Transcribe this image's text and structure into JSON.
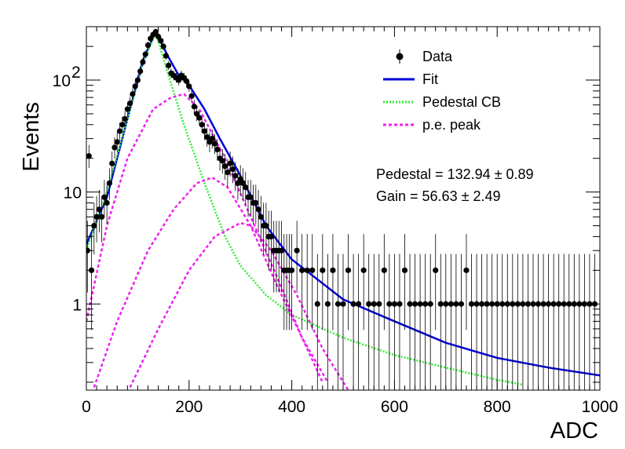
{
  "chart_data": {
    "type": "scatter",
    "title": "",
    "xlabel": "ADC",
    "ylabel": "Events",
    "xlim": [
      0,
      1000
    ],
    "ylim": [
      0.17,
      300
    ],
    "yscale": "log",
    "x_tick_labels": [
      "0",
      "200",
      "400",
      "600",
      "800",
      "1000"
    ],
    "x_ticks": [
      0,
      200,
      400,
      600,
      800,
      1000
    ],
    "y_ticks": [
      1,
      10,
      100
    ],
    "y_tick_labels": [
      {
        "base": "1",
        "exp": ""
      },
      {
        "base": "10",
        "exp": ""
      },
      {
        "base": "10",
        "exp": "2"
      }
    ],
    "grid": false,
    "legend_position": "top-right",
    "legend": [
      {
        "label": "Data",
        "style": "marker",
        "color": "#000000"
      },
      {
        "label": "Fit",
        "style": "solid",
        "color": "#0000dd"
      },
      {
        "label": "Pedestal CB",
        "style": "dotted",
        "color": "#33ee33"
      },
      {
        "label": "p.e. peak",
        "style": "dashed",
        "color": "#ee22ee"
      }
    ],
    "annotations": [
      {
        "label": "Pedestal = 132.94",
        "pm": "±",
        "err": "0.89"
      },
      {
        "label": "Gain = 56.63",
        "pm": "±",
        "err": "2.49"
      }
    ],
    "fit_parameters": {
      "pedestal": 132.94,
      "pedestal_err": 0.89,
      "gain": 56.63,
      "gain_err": 2.49
    },
    "series": [
      {
        "name": "Data",
        "color": "#000000",
        "points": [
          [
            2,
            3
          ],
          [
            5,
            21
          ],
          [
            10,
            2
          ],
          [
            15,
            5
          ],
          [
            20,
            6
          ],
          [
            25,
            7
          ],
          [
            30,
            6
          ],
          [
            35,
            9
          ],
          [
            40,
            8
          ],
          [
            45,
            12
          ],
          [
            50,
            18
          ],
          [
            55,
            25
          ],
          [
            60,
            28
          ],
          [
            65,
            35
          ],
          [
            70,
            40
          ],
          [
            75,
            45
          ],
          [
            80,
            55
          ],
          [
            85,
            62
          ],
          [
            90,
            75
          ],
          [
            95,
            88
          ],
          [
            100,
            100
          ],
          [
            105,
            120
          ],
          [
            110,
            145
          ],
          [
            115,
            170
          ],
          [
            120,
            205
          ],
          [
            125,
            235
          ],
          [
            130,
            255
          ],
          [
            135,
            270
          ],
          [
            140,
            245
          ],
          [
            145,
            225
          ],
          [
            150,
            200
          ],
          [
            155,
            165
          ],
          [
            160,
            135
          ],
          [
            165,
            115
          ],
          [
            170,
            110
          ],
          [
            175,
            105
          ],
          [
            180,
            100
          ],
          [
            185,
            110
          ],
          [
            190,
            105
          ],
          [
            195,
            98
          ],
          [
            200,
            88
          ],
          [
            205,
            72
          ],
          [
            210,
            58
          ],
          [
            215,
            50
          ],
          [
            220,
            46
          ],
          [
            225,
            40
          ],
          [
            230,
            35
          ],
          [
            235,
            31
          ],
          [
            240,
            28
          ],
          [
            245,
            30
          ],
          [
            250,
            27
          ],
          [
            255,
            24
          ],
          [
            260,
            20
          ],
          [
            265,
            19
          ],
          [
            270,
            17
          ],
          [
            275,
            15
          ],
          [
            280,
            18
          ],
          [
            285,
            16
          ],
          [
            290,
            14
          ],
          [
            295,
            12
          ],
          [
            300,
            13
          ],
          [
            305,
            12
          ],
          [
            310,
            11
          ],
          [
            315,
            9
          ],
          [
            320,
            9
          ],
          [
            325,
            8
          ],
          [
            330,
            8
          ],
          [
            335,
            7
          ],
          [
            340,
            6
          ],
          [
            345,
            5
          ],
          [
            350,
            5
          ],
          [
            355,
            4
          ],
          [
            360,
            4
          ],
          [
            365,
            3
          ],
          [
            370,
            3
          ],
          [
            375,
            3
          ],
          [
            380,
            3
          ],
          [
            385,
            2
          ],
          [
            390,
            2
          ],
          [
            395,
            2
          ],
          [
            400,
            2
          ],
          [
            410,
            3
          ],
          [
            420,
            2
          ],
          [
            430,
            2
          ],
          [
            440,
            2
          ],
          [
            450,
            1
          ],
          [
            460,
            2
          ],
          [
            470,
            1
          ],
          [
            480,
            2
          ],
          [
            490,
            1
          ],
          [
            500,
            1
          ],
          [
            510,
            2
          ],
          [
            520,
            1
          ],
          [
            530,
            1
          ],
          [
            540,
            2
          ],
          [
            550,
            1
          ],
          [
            560,
            1
          ],
          [
            570,
            1
          ],
          [
            580,
            2
          ],
          [
            590,
            1
          ],
          [
            600,
            1
          ],
          [
            610,
            1
          ],
          [
            620,
            2
          ],
          [
            630,
            1
          ],
          [
            640,
            1
          ],
          [
            650,
            1
          ],
          [
            660,
            1
          ],
          [
            670,
            1
          ],
          [
            680,
            2
          ],
          [
            690,
            1
          ],
          [
            700,
            1
          ],
          [
            710,
            1
          ],
          [
            720,
            1
          ],
          [
            730,
            1
          ],
          [
            740,
            2
          ],
          [
            750,
            1
          ],
          [
            760,
            1
          ],
          [
            770,
            1
          ],
          [
            780,
            1
          ],
          [
            790,
            1
          ],
          [
            800,
            1
          ],
          [
            810,
            1
          ],
          [
            820,
            1
          ],
          [
            830,
            1
          ],
          [
            840,
            1
          ],
          [
            850,
            1
          ],
          [
            860,
            1
          ],
          [
            870,
            1
          ],
          [
            880,
            1
          ],
          [
            890,
            1
          ],
          [
            900,
            1
          ],
          [
            910,
            1
          ],
          [
            920,
            1
          ],
          [
            930,
            1
          ],
          [
            940,
            1
          ],
          [
            950,
            1
          ],
          [
            960,
            1
          ],
          [
            970,
            1
          ],
          [
            980,
            1
          ],
          [
            990,
            1
          ]
        ]
      },
      {
        "name": "Fit",
        "color": "#0000dd",
        "points": [
          [
            0,
            3.4
          ],
          [
            40,
            9
          ],
          [
            80,
            45
          ],
          [
            110,
            150
          ],
          [
            135,
            270
          ],
          [
            160,
            160
          ],
          [
            180,
            110
          ],
          [
            200,
            90
          ],
          [
            230,
            55
          ],
          [
            260,
            30
          ],
          [
            300,
            14
          ],
          [
            350,
            5
          ],
          [
            400,
            2.5
          ],
          [
            500,
            1.1
          ],
          [
            600,
            0.7
          ],
          [
            700,
            0.45
          ],
          [
            800,
            0.33
          ],
          [
            900,
            0.27
          ],
          [
            1000,
            0.23
          ]
        ]
      },
      {
        "name": "Pedestal CB",
        "color": "#33ee33",
        "points": [
          [
            0,
            3
          ],
          [
            40,
            10
          ],
          [
            80,
            45
          ],
          [
            110,
            140
          ],
          [
            135,
            265
          ],
          [
            160,
            110
          ],
          [
            190,
            40
          ],
          [
            230,
            12
          ],
          [
            270,
            4
          ],
          [
            300,
            2.2
          ],
          [
            350,
            1.2
          ],
          [
            400,
            0.8
          ],
          [
            500,
            0.5
          ],
          [
            600,
            0.35
          ],
          [
            700,
            0.27
          ],
          [
            800,
            0.21
          ],
          [
            850,
            0.19
          ]
        ]
      },
      {
        "name": "p.e. peak",
        "color": "#ee22ee",
        "points": [
          [
            0,
            0.7
          ],
          [
            40,
            5
          ],
          [
            80,
            20
          ],
          [
            130,
            55
          ],
          [
            165,
            70
          ],
          [
            190,
            75
          ],
          [
            220,
            55
          ],
          [
            270,
            20
          ],
          [
            320,
            6
          ],
          [
            370,
            1.8
          ],
          [
            420,
            0.5
          ],
          [
            470,
            0.2
          ]
        ]
      },
      {
        "name": "p.e. peak",
        "color": "#ee22ee",
        "points": [
          [
            15,
            0.18
          ],
          [
            60,
            0.7
          ],
          [
            120,
            3
          ],
          [
            170,
            7
          ],
          [
            215,
            12
          ],
          [
            245,
            13.5
          ],
          [
            275,
            11
          ],
          [
            320,
            5
          ],
          [
            370,
            1.5
          ],
          [
            420,
            0.5
          ],
          [
            460,
            0.2
          ]
        ]
      },
      {
        "name": "p.e. peak",
        "color": "#ee22ee",
        "points": [
          [
            85,
            0.18
          ],
          [
            140,
            0.6
          ],
          [
            200,
            2
          ],
          [
            250,
            4
          ],
          [
            300,
            5.3
          ],
          [
            320,
            5
          ],
          [
            360,
            3
          ],
          [
            410,
            1.2
          ],
          [
            460,
            0.4
          ],
          [
            510,
            0.17
          ]
        ]
      }
    ]
  }
}
